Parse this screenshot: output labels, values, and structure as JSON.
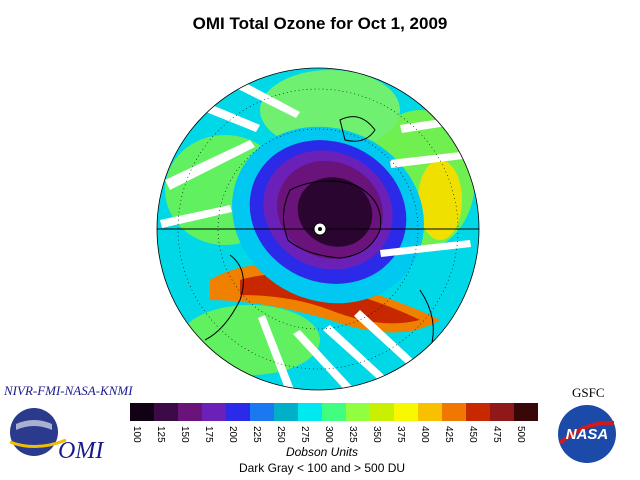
{
  "title": "OMI Total Ozone for Oct  1, 2009",
  "credit_left": "NIVR-FMI-NASA-KNMI",
  "credit_right": "GSFC",
  "omi_logo_text": "OMI",
  "nasa_logo_text": "NASA",
  "colorbar": {
    "labels": [
      "100",
      "125",
      "150",
      "175",
      "200",
      "225",
      "250",
      "275",
      "300",
      "325",
      "350",
      "375",
      "400",
      "425",
      "450",
      "475",
      "500"
    ],
    "colors": [
      "#120014",
      "#3d0a48",
      "#6a137a",
      "#6b20b8",
      "#2a2ae8",
      "#1a78f0",
      "#00b0c8",
      "#00e8f0",
      "#40ff80",
      "#90ff40",
      "#c8f000",
      "#f8f800",
      "#f8c000",
      "#f07800",
      "#c82800",
      "#901818",
      "#380808"
    ]
  },
  "units_label": "Dobson Units",
  "range_note": "Dark Gray < 100 and > 500 DU"
}
